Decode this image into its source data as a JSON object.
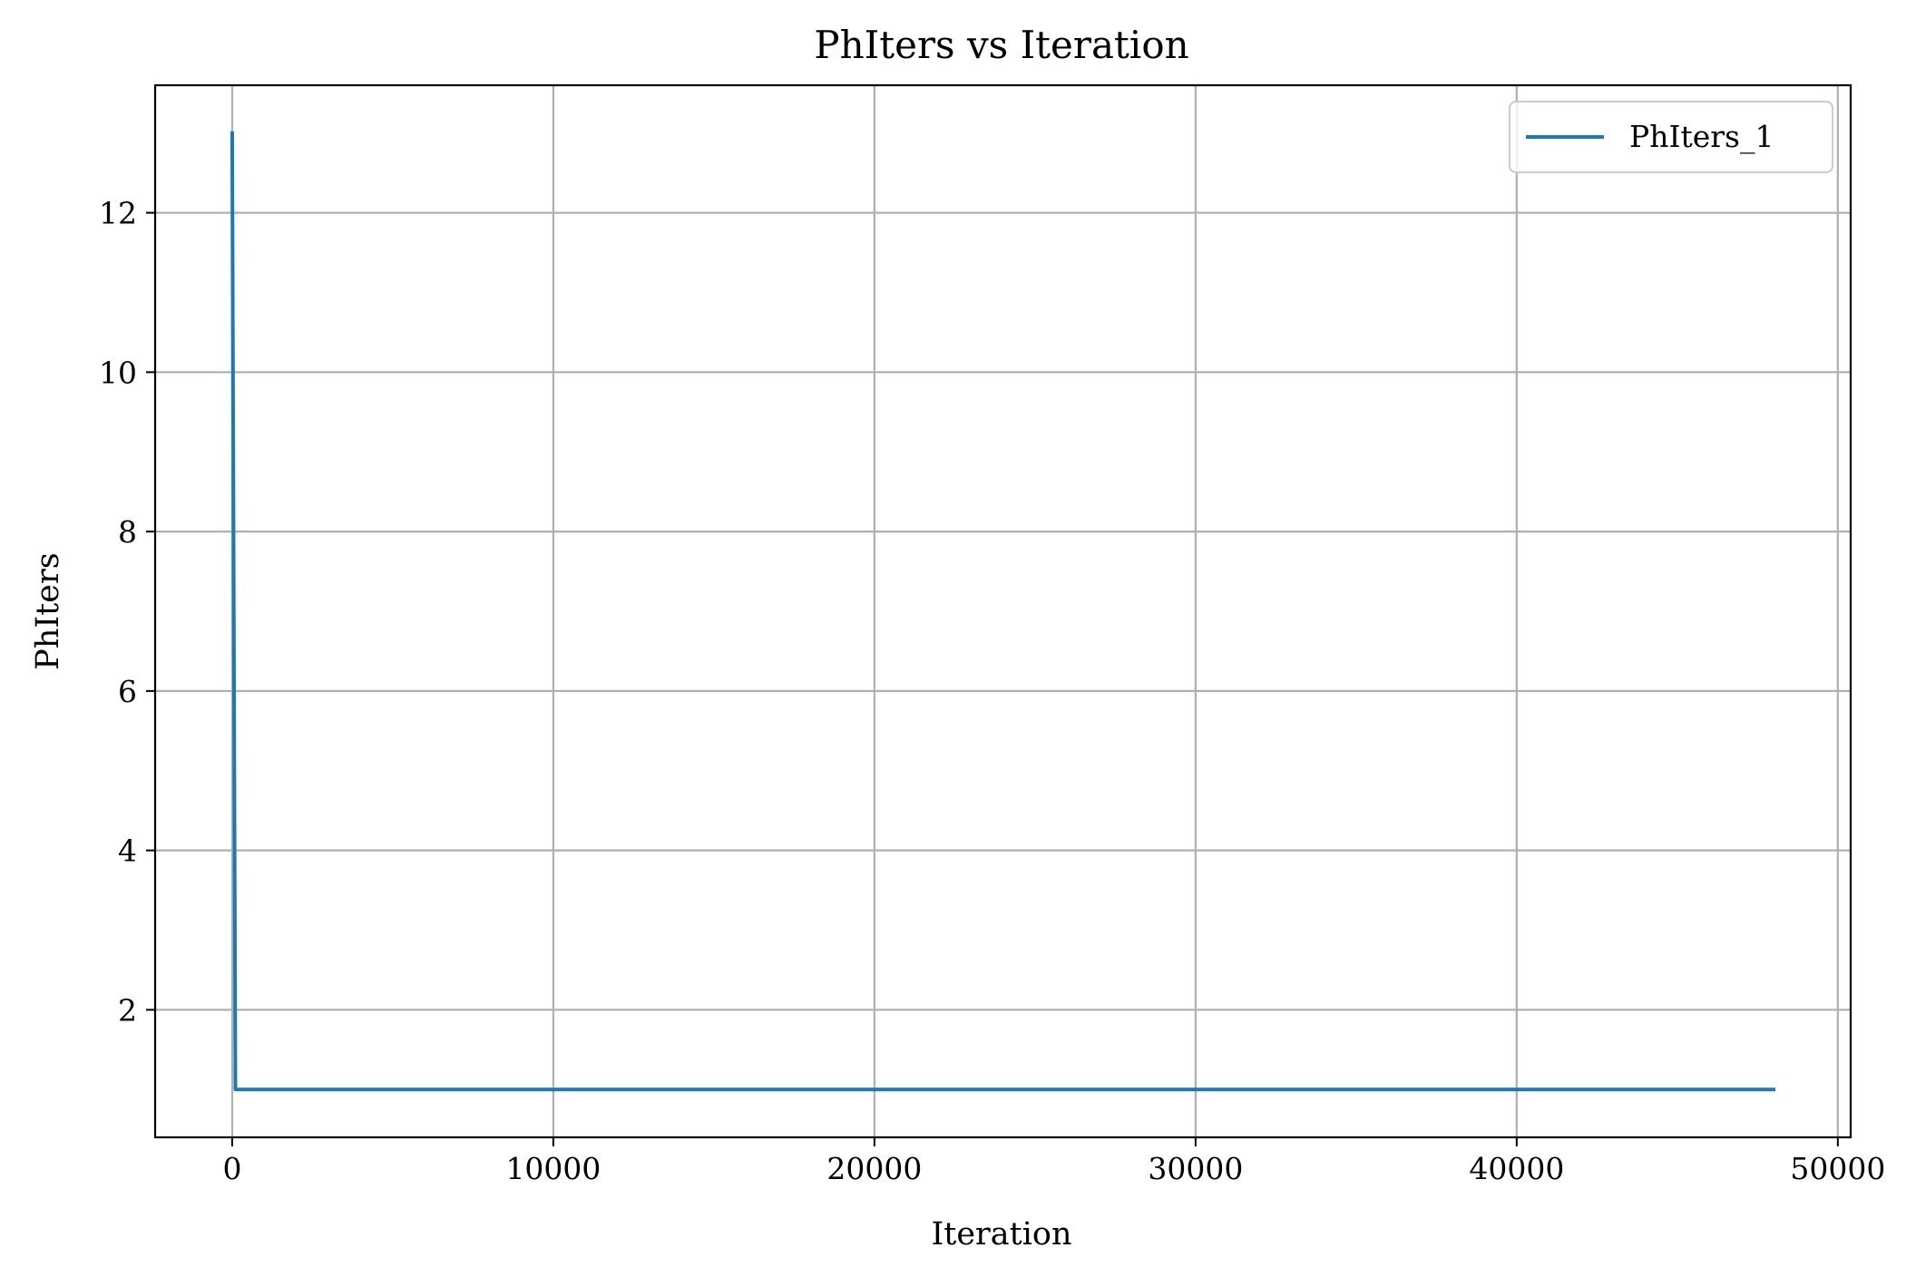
{
  "chart_data": {
    "type": "line",
    "title": "PhIters vs Iteration",
    "xlabel": "Iteration",
    "ylabel": "PhIters",
    "xlim": [
      -2400,
      50400
    ],
    "ylim": [
      0.4,
      13.6
    ],
    "xticks": [
      0,
      10000,
      20000,
      30000,
      40000,
      50000
    ],
    "yticks": [
      2,
      4,
      6,
      8,
      10,
      12
    ],
    "grid": true,
    "legend_position": "top-right",
    "series": [
      {
        "name": "PhIters_1",
        "color": "#1f77b4",
        "x": [
          0,
          100,
          48000
        ],
        "y": [
          13,
          1,
          1
        ]
      }
    ]
  }
}
